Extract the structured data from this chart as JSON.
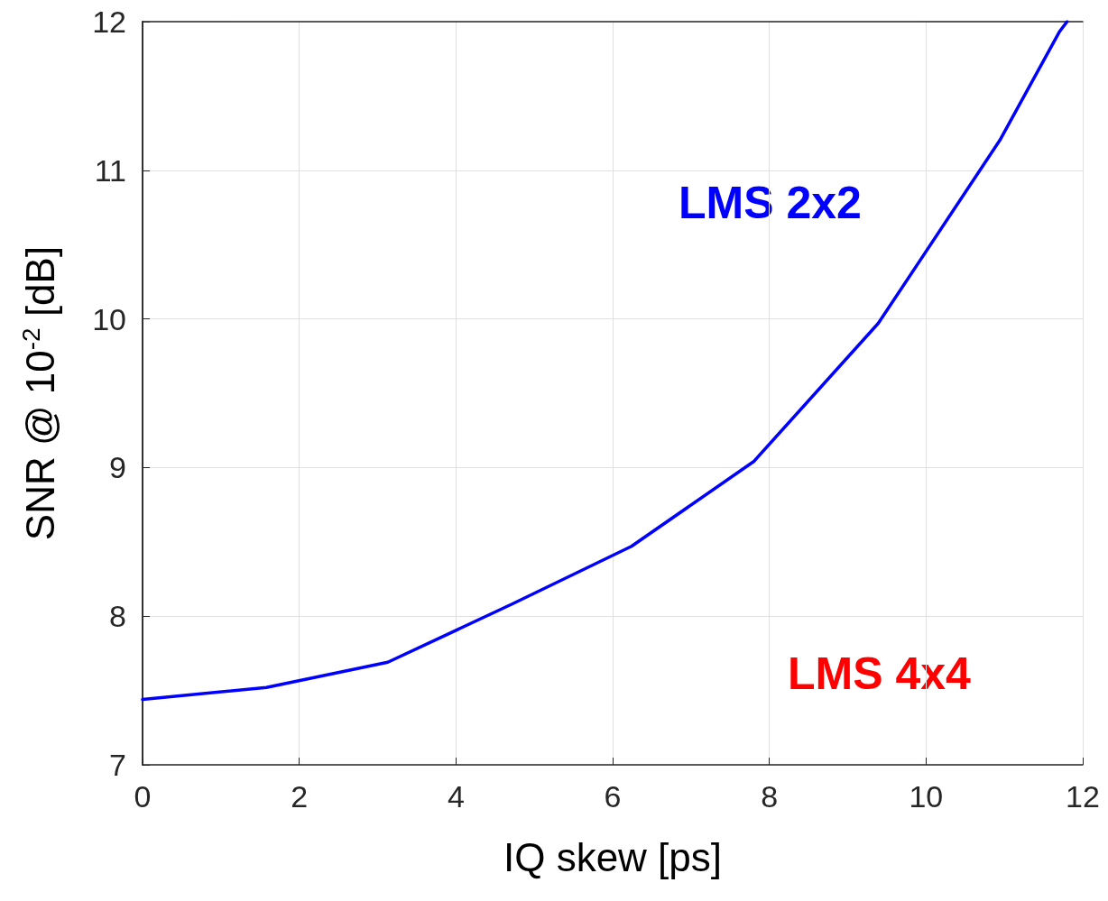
{
  "chart_data": {
    "type": "line",
    "xlabel": "IQ skew [ps]",
    "ylabel": "SNR @ 10$^{-2}$ [dB]",
    "x": [
      0,
      1.58,
      3.13,
      4.71,
      6.24,
      7.8,
      9.39,
      10.94,
      11.7,
      11.8
    ],
    "series": [
      {
        "name": "LMS 2x2",
        "color": "#0000ff",
        "values": [
          7.44,
          7.52,
          7.69,
          8.08,
          8.47,
          9.04,
          9.97,
          11.2,
          11.93,
          12.0
        ]
      },
      {
        "name": "LMS 4x4",
        "color": "#ff0000",
        "values": [
          null,
          null,
          null,
          null,
          null,
          null,
          null,
          null,
          null,
          null
        ]
      }
    ],
    "xlim": [
      0,
      12
    ],
    "xticks": [
      0,
      2,
      4,
      6,
      8,
      10,
      12
    ],
    "ylim": [
      7,
      12
    ],
    "yticks": [
      7,
      8,
      9,
      10,
      11,
      12
    ],
    "grid": true,
    "marker": "none",
    "line_style": "solid"
  }
}
